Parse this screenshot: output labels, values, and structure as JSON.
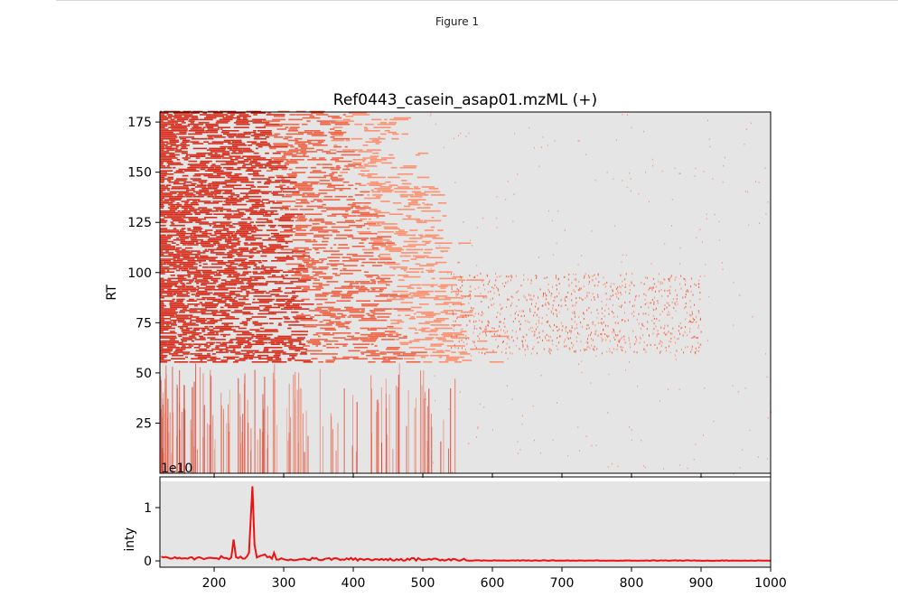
{
  "window": {
    "figure_label": "Figure 1"
  },
  "colors": {
    "axes_bg": "#e5e5e5",
    "heat_dark": "#d7301f",
    "heat_mid": "#ef6548",
    "heat_light": "#fc9272",
    "trace": "#ee1111"
  },
  "chart_data": [
    {
      "type": "heatmap",
      "title": "Ref0443_casein_asap01.mzML (+)",
      "xlabel": "",
      "ylabel": "RT",
      "xlim": [
        122,
        1000
      ],
      "ylim": [
        0,
        180
      ],
      "yticks": [
        25,
        50,
        75,
        100,
        125,
        150,
        175
      ],
      "xticks": [
        200,
        300,
        400,
        500,
        600,
        700,
        800,
        900,
        1000
      ],
      "x_ticklabels_shown": false,
      "colormap": "Reds",
      "description_regions": [
        {
          "rt_range": [
            55,
            180
          ],
          "mz_range": [
            122,
            560
          ],
          "density": "high"
        },
        {
          "rt_range": [
            60,
            100
          ],
          "mz_range": [
            560,
            900
          ],
          "density": "medium"
        },
        {
          "rt_range": [
            0,
            55
          ],
          "mz_range": [
            122,
            550
          ],
          "density": "streaks"
        }
      ]
    },
    {
      "type": "line",
      "title": "",
      "xlabel": "",
      "ylabel": "inty",
      "y_offset_label": "1e10",
      "xlim": [
        122,
        1000
      ],
      "ylim": [
        -0.1,
        1.5
      ],
      "yticks": [
        0,
        1
      ],
      "xticks": [
        200,
        300,
        400,
        500,
        600,
        700,
        800,
        900,
        1000
      ],
      "series": [
        {
          "x": [
            124,
            150,
            168,
            182,
            195,
            210,
            218,
            228,
            238,
            250,
            255,
            258,
            268,
            273,
            280,
            286,
            300,
            320,
            350,
            400,
            450,
            512,
            550,
            600,
            700,
            800,
            900,
            1000
          ],
          "values": [
            0.08,
            0.06,
            0.07,
            0.05,
            0.06,
            0.09,
            0.05,
            0.4,
            0.08,
            0.15,
            1.4,
            0.3,
            0.1,
            0.12,
            0.08,
            0.15,
            0.03,
            0.02,
            0.02,
            0.02,
            0.01,
            0.02,
            0.01,
            0.005,
            0.003,
            0.002,
            0.002,
            0.001
          ]
        }
      ]
    }
  ]
}
